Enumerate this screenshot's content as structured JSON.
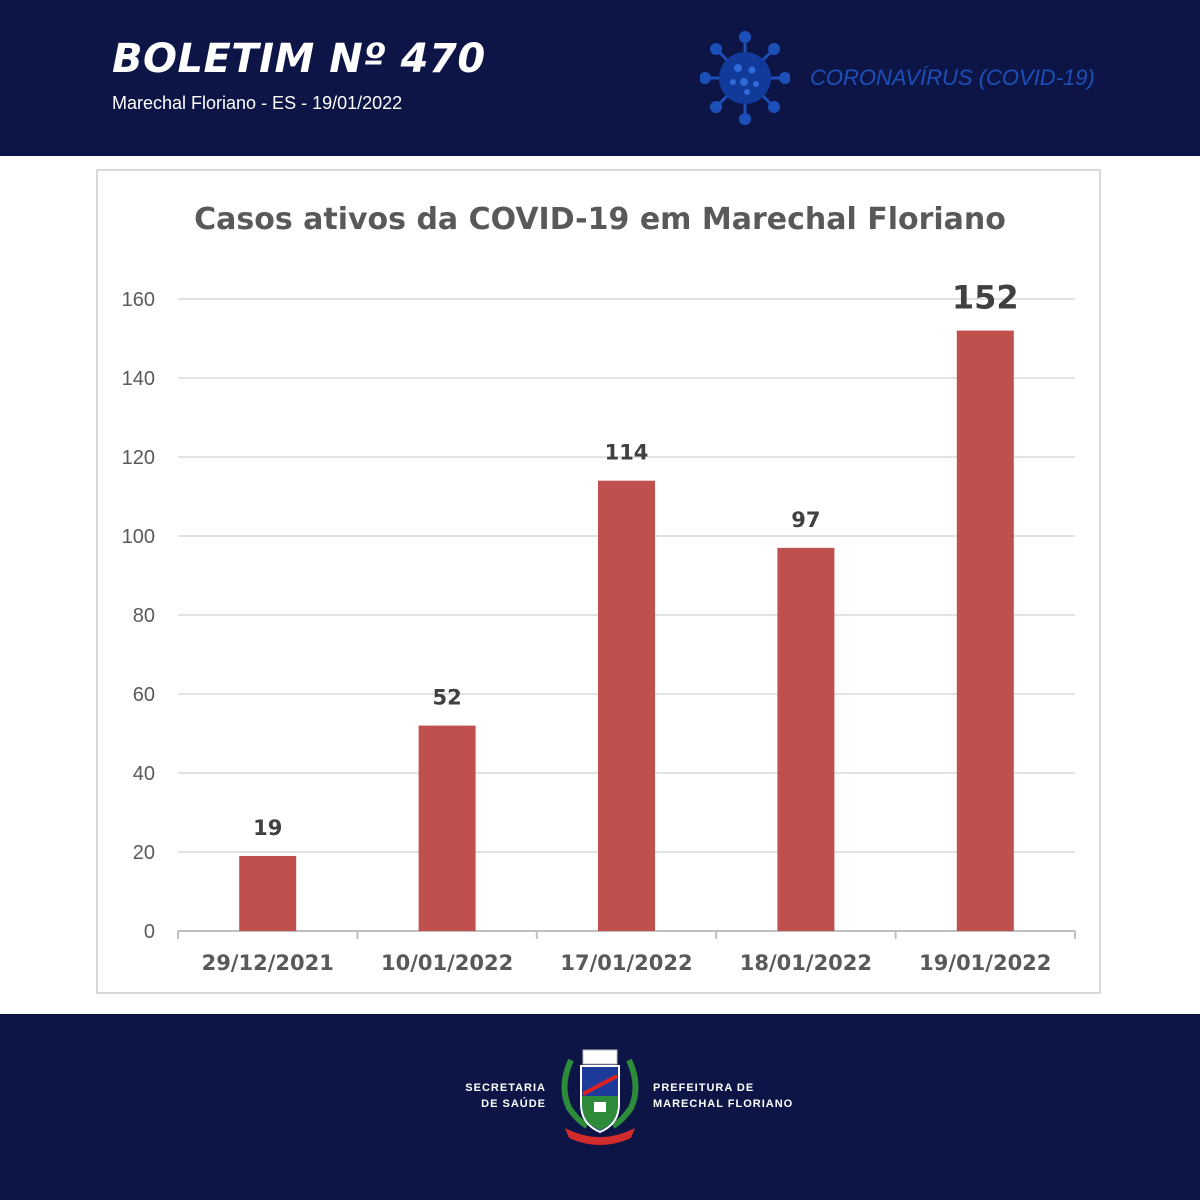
{
  "header": {
    "bulletin_title": "BOLETIM Nº 470",
    "subtitle": "Marechal Floriano - ES - 19/01/2022",
    "covid_label": "CORONAVÍRUS (COVID-19)",
    "icon": "coronavirus-icon"
  },
  "colors": {
    "band": "#0d1546",
    "bar": "#c0504d",
    "accent": "#1c4fb8"
  },
  "chart_data": {
    "type": "bar",
    "title": "Casos ativos da COVID-19 em Marechal Floriano",
    "categories": [
      "29/12/2021",
      "10/01/2022",
      "17/01/2022",
      "18/01/2022",
      "19/01/2022"
    ],
    "values": [
      19,
      52,
      114,
      97,
      152
    ],
    "ylim": [
      0,
      160
    ],
    "yticks": [
      0,
      20,
      40,
      60,
      80,
      100,
      120,
      140,
      160
    ],
    "grid": true,
    "data_labels": true
  },
  "footer": {
    "left_label": "SECRETARIA\nDE SAÚDE",
    "right_label": "PREFEITURA DE\nMARECHAL FLORIANO",
    "crest_icon": "municipal-crest-icon"
  }
}
